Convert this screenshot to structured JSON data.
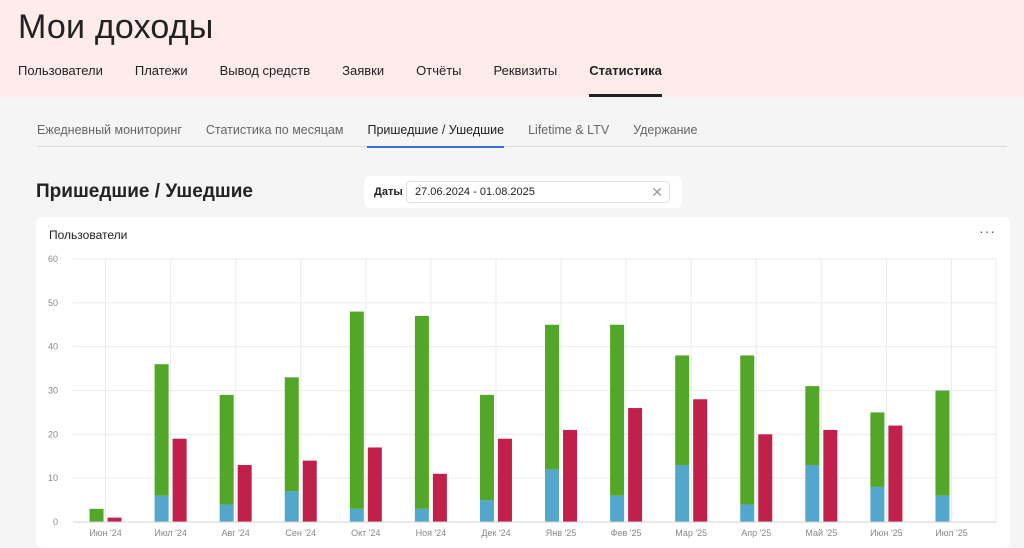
{
  "app": {
    "title": "Мои доходы"
  },
  "nav": {
    "items": [
      {
        "label": "Пользователи",
        "active": false
      },
      {
        "label": "Платежи",
        "active": false
      },
      {
        "label": "Вывод средств",
        "active": false
      },
      {
        "label": "Заявки",
        "active": false
      },
      {
        "label": "Отчёты",
        "active": false
      },
      {
        "label": "Реквизиты",
        "active": false
      },
      {
        "label": "Статистика",
        "active": true
      }
    ]
  },
  "tabs": {
    "items": [
      {
        "label": "Ежедневный мониторинг",
        "active": false
      },
      {
        "label": "Статистика по месяцам",
        "active": false
      },
      {
        "label": "Пришедшие / Ушедшие",
        "active": true
      },
      {
        "label": "Lifetime & LTV",
        "active": false
      },
      {
        "label": "Удержание",
        "active": false
      }
    ]
  },
  "section": {
    "title": "Пришедшие / Ушедшие"
  },
  "filter": {
    "label": "Даты",
    "value": "27.06.2024 - 01.08.2025",
    "clear_icon": "close-icon"
  },
  "card": {
    "title": "Пользователи",
    "menu_icon": "more-horizontal-icon",
    "menu_glyph": "···"
  },
  "colors": {
    "green": "#52a628",
    "blue": "#53a6cc",
    "red": "#c0214b",
    "header_bg": "#fdecea",
    "tab_accent": "#2f6fe0"
  },
  "chart_data": {
    "type": "bar",
    "categories": [
      "Июн '24",
      "Июл '24",
      "Авг '24",
      "Сен '24",
      "Окт '24",
      "Ноя '24",
      "Дек '24",
      "Янв '25",
      "Фев '25",
      "Мар '25",
      "Апр '25",
      "Май '25",
      "Июн '25",
      "Июл '25"
    ],
    "series": [
      {
        "color": "#53a6cc",
        "stack": "in",
        "values": [
          0,
          6,
          4,
          7,
          3,
          3,
          5,
          12,
          6,
          13,
          4,
          13,
          8,
          6
        ]
      },
      {
        "color": "#52a628",
        "stack": "in",
        "values": [
          3,
          30,
          25,
          26,
          45,
          44,
          24,
          33,
          39,
          25,
          34,
          18,
          17,
          24
        ]
      },
      {
        "color": "#c0214b",
        "stack": "out",
        "values": [
          1,
          19,
          13,
          14,
          17,
          11,
          19,
          21,
          26,
          28,
          20,
          21,
          22,
          0
        ]
      }
    ],
    "ylim": [
      0,
      60
    ],
    "yticks": [
      0,
      10,
      20,
      30,
      40,
      50,
      60
    ],
    "grid": true,
    "title": "",
    "xlabel": "",
    "ylabel": ""
  }
}
